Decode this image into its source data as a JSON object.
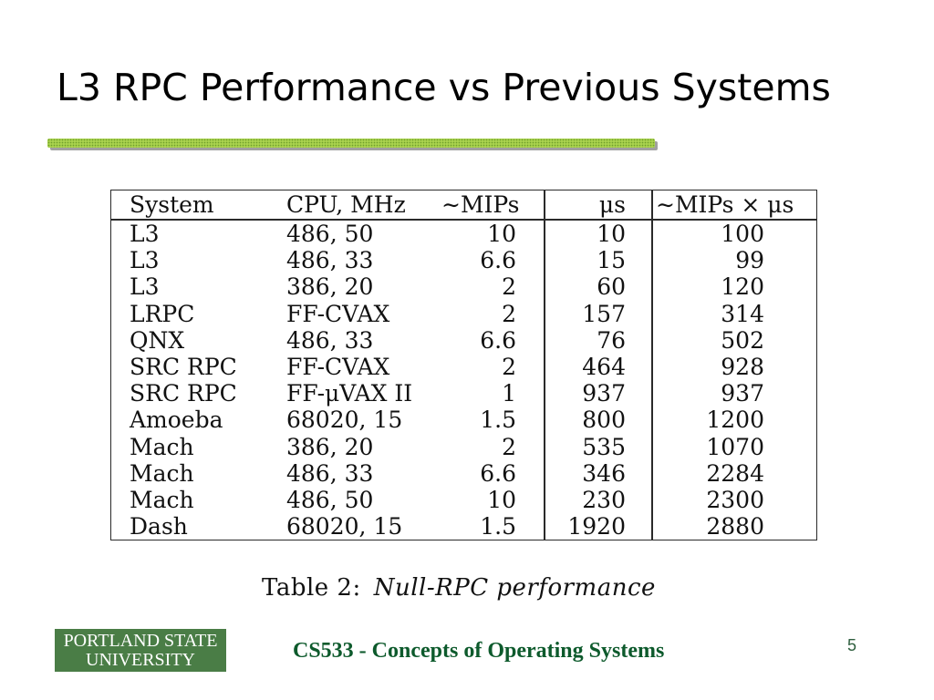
{
  "slide": {
    "title": "L3 RPC Performance vs Previous Systems",
    "footer_text": "CS533 - Concepts of Operating Systems",
    "page_number": "5",
    "logo": {
      "line1": "PORTLAND STATE",
      "line2": "UNIVERSITY"
    }
  },
  "table": {
    "headers": [
      "System",
      "CPU, MHz",
      "∼MIPs",
      "μs",
      "∼MIPs × μs"
    ],
    "rows": [
      {
        "system": "L3",
        "cpu": "486, 50",
        "mips": "10",
        "us": "10",
        "mips_x_us": "100"
      },
      {
        "system": "L3",
        "cpu": "486, 33",
        "mips": "6.6",
        "us": "15",
        "mips_x_us": "99"
      },
      {
        "system": "L3",
        "cpu": "386, 20",
        "mips": "2",
        "us": "60",
        "mips_x_us": "120"
      },
      {
        "system": "LRPC",
        "cpu": "FF-CVAX",
        "mips": "2",
        "us": "157",
        "mips_x_us": "314"
      },
      {
        "system": "QNX",
        "cpu": "486, 33",
        "mips": "6.6",
        "us": "76",
        "mips_x_us": "502"
      },
      {
        "system": "SRC RPC",
        "cpu": "FF-CVAX",
        "mips": "2",
        "us": "464",
        "mips_x_us": "928"
      },
      {
        "system": "SRC RPC",
        "cpu": "FF-μVAX II",
        "mips": "1",
        "us": "937",
        "mips_x_us": "937"
      },
      {
        "system": "Amoeba",
        "cpu": "68020, 15",
        "mips": "1.5",
        "us": "800",
        "mips_x_us": "1200"
      },
      {
        "system": "Mach",
        "cpu": "386, 20",
        "mips": "2",
        "us": "535",
        "mips_x_us": "1070"
      },
      {
        "system": "Mach",
        "cpu": "486, 33",
        "mips": "6.6",
        "us": "346",
        "mips_x_us": "2284"
      },
      {
        "system": "Mach",
        "cpu": "486, 50",
        "mips": "10",
        "us": "230",
        "mips_x_us": "2300"
      },
      {
        "system": "Dash",
        "cpu": "68020, 15",
        "mips": "1.5",
        "us": "1920",
        "mips_x_us": "2880"
      }
    ],
    "caption_prefix": "Table 2:",
    "caption_title": "Null-RPC performance"
  },
  "colors": {
    "title": "#000000",
    "rule_green": "#a9d24e",
    "logo_background": "#4a7d46",
    "footer_text": "#0d5a2c",
    "page_number": "#2e5e3e"
  }
}
